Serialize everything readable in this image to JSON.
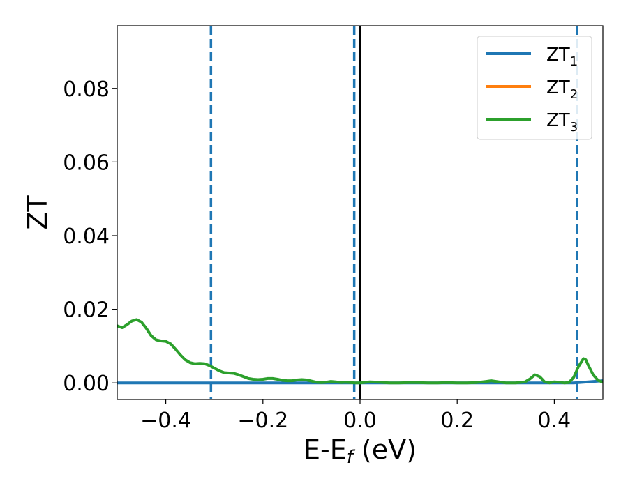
{
  "chart_data": {
    "type": "line",
    "xlabel": "E-E",
    "xlabel_sub": "f",
    "xlabel_suffix": " (eV)",
    "ylabel": "ZT",
    "xlim": [
      -0.5,
      0.5
    ],
    "ylim": [
      -0.0045,
      0.097
    ],
    "xticks": [
      -0.4,
      -0.2,
      0.0,
      0.2,
      0.4
    ],
    "xtick_labels": [
      "−0.4",
      "−0.2",
      "0.0",
      "0.2",
      "0.4"
    ],
    "yticks": [
      0.0,
      0.02,
      0.04,
      0.06,
      0.08
    ],
    "ytick_labels": [
      "0.00",
      "0.02",
      "0.04",
      "0.06",
      "0.08"
    ],
    "grid": false,
    "legend_position": "top-right",
    "vertical_lines": [
      {
        "x": -0.307,
        "style": "dashed",
        "color": "#1f77b4"
      },
      {
        "x": -0.012,
        "style": "dashed",
        "color": "#1f77b4"
      },
      {
        "x": 0.0,
        "style": "solid",
        "color": "#000000"
      },
      {
        "x": 0.447,
        "style": "dashed",
        "color": "#1f77b4"
      }
    ],
    "series": [
      {
        "name": "ZT",
        "sub": "1",
        "color": "#1f77b4",
        "x": [
          -0.5,
          -0.3,
          0.0,
          0.3,
          0.44,
          0.47,
          0.5
        ],
        "y": [
          0.0,
          0.0,
          0.0,
          0.0,
          0.0,
          0.0003,
          0.0006
        ]
      },
      {
        "name": "ZT",
        "sub": "2",
        "color": "#ff7f0e",
        "x": [],
        "y": []
      },
      {
        "name": "ZT",
        "sub": "3",
        "color": "#2ca02c",
        "x": [
          -0.5,
          -0.49,
          -0.48,
          -0.47,
          -0.46,
          -0.45,
          -0.44,
          -0.43,
          -0.42,
          -0.41,
          -0.4,
          -0.39,
          -0.38,
          -0.37,
          -0.36,
          -0.35,
          -0.34,
          -0.33,
          -0.32,
          -0.31,
          -0.3,
          -0.29,
          -0.28,
          -0.27,
          -0.26,
          -0.25,
          -0.24,
          -0.23,
          -0.22,
          -0.21,
          -0.2,
          -0.19,
          -0.18,
          -0.17,
          -0.16,
          -0.15,
          -0.14,
          -0.13,
          -0.12,
          -0.11,
          -0.1,
          -0.09,
          -0.08,
          -0.07,
          -0.06,
          -0.05,
          -0.04,
          -0.03,
          -0.02,
          -0.01,
          0.0,
          0.02,
          0.04,
          0.06,
          0.08,
          0.1,
          0.12,
          0.14,
          0.16,
          0.18,
          0.2,
          0.22,
          0.24,
          0.26,
          0.27,
          0.28,
          0.3,
          0.32,
          0.34,
          0.35,
          0.36,
          0.37,
          0.38,
          0.39,
          0.4,
          0.41,
          0.42,
          0.43,
          0.44,
          0.45,
          0.46,
          0.465,
          0.47,
          0.48,
          0.49,
          0.5
        ],
        "y": [
          0.0155,
          0.015,
          0.0158,
          0.0168,
          0.0172,
          0.0165,
          0.0148,
          0.0128,
          0.0117,
          0.0114,
          0.0113,
          0.0106,
          0.0092,
          0.0076,
          0.0063,
          0.0055,
          0.0052,
          0.0053,
          0.0052,
          0.0047,
          0.004,
          0.0033,
          0.0028,
          0.0027,
          0.0026,
          0.0022,
          0.0017,
          0.0012,
          0.001,
          0.0009,
          0.001,
          0.0012,
          0.0012,
          0.001,
          0.0007,
          0.0006,
          0.0006,
          0.0008,
          0.0009,
          0.0008,
          0.0005,
          0.0002,
          0.0001,
          0.0002,
          0.0004,
          0.0003,
          0.0001,
          0.0002,
          0.0001,
          0.0,
          0.0,
          0.0003,
          0.0002,
          0.0,
          0.0,
          0.0001,
          0.0001,
          0.0,
          0.0,
          0.0001,
          0.0,
          0.0,
          0.0001,
          0.0004,
          0.0006,
          0.0004,
          0.0,
          0.0,
          0.0003,
          0.0011,
          0.0022,
          0.0017,
          0.0003,
          0.0,
          0.0003,
          0.0002,
          0.0,
          0.0001,
          0.0015,
          0.0045,
          0.0066,
          0.0063,
          0.0048,
          0.0022,
          0.0007,
          0.0002
        ]
      }
    ]
  }
}
